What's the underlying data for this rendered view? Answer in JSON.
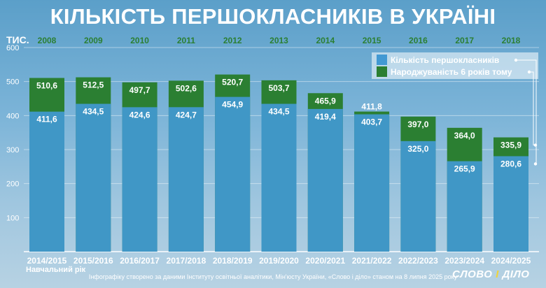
{
  "title": "КІЛЬКІСТЬ ПЕРШОКЛАСНИКІВ В УКРАЇНІ",
  "footer_note": "Інфографіку створено за даними Інституту освітньої аналітики, Мін'юсту України, «Слово і діло» станом на 8 липня 2025 року",
  "logo": {
    "left": "СЛОВО",
    "sep": "І",
    "right": "ДІЛО"
  },
  "colors": {
    "first_graders": "#4299d3",
    "births": "#2b7f32",
    "title": "#ffffff"
  },
  "chart_data": {
    "type": "bar",
    "stacking": "overlay",
    "title": "КІЛЬКІСТЬ ПЕРШОКЛАСНИКІВ В УКРАЇНІ",
    "ylabel": "ТИС.",
    "xlabel": "Навчальний рік",
    "ylim": [
      0,
      600
    ],
    "yticks": [
      100,
      200,
      300,
      400,
      500,
      600
    ],
    "categories": [
      "2014/2015",
      "2015/2016",
      "2016/2017",
      "2017/2018",
      "2018/2019",
      "2019/2020",
      "2020/2021",
      "2021/2022",
      "2022/2023",
      "2023/2024",
      "2024/2025"
    ],
    "birth_years": [
      "2008",
      "2009",
      "2010",
      "2011",
      "2012",
      "2013",
      "2014",
      "2015",
      "2016",
      "2017",
      "2018"
    ],
    "series": [
      {
        "name": "Кількість першокласників",
        "color": "#4299d3",
        "values": [
          411.6,
          434.5,
          424.6,
          424.7,
          454.9,
          434.5,
          419.4,
          403.7,
          325.0,
          265.9,
          280.6
        ],
        "labels": [
          "411,6",
          "434,5",
          "424,6",
          "424,7",
          "454,9",
          "434,5",
          "419,4",
          "403,7",
          "325,0",
          "265,9",
          "280,6"
        ]
      },
      {
        "name": "Народжуваність 6 років тому",
        "color": "#2b7f32",
        "values": [
          510.6,
          512.5,
          497.7,
          502.6,
          520.7,
          503.7,
          465.9,
          411.8,
          397.0,
          364.0,
          335.9
        ],
        "labels": [
          "510,6",
          "512,5",
          "497,7",
          "502,6",
          "520,7",
          "503,7",
          "465,9",
          "411,8",
          "397,0",
          "364,0",
          "335,9"
        ]
      }
    ],
    "legend_position": "top-right",
    "grid": true
  }
}
